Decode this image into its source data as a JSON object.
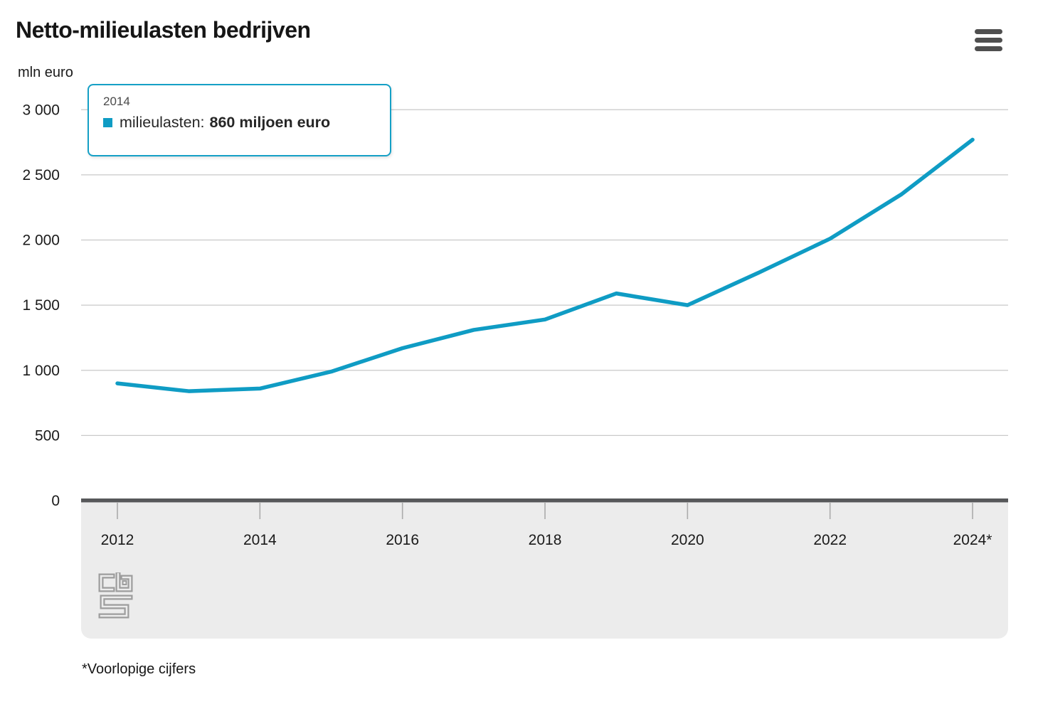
{
  "header": {
    "title": "Netto-milieulasten bedrijven",
    "menu_icon": "hamburger-menu-icon"
  },
  "tooltip": {
    "year": "2014",
    "series_label": "milieulasten:",
    "value_text": "860 miljoen euro"
  },
  "footnote": "*Voorlopige cijfers",
  "logo_name": "cbs-logo",
  "colors": {
    "line": "#0f9cc4",
    "tooltip_border": "#15a0c6",
    "grid": "#c9c9c9",
    "axis_bar": "#57585a",
    "tick": "#ababab",
    "footer_bg": "#ececec",
    "text": "#1a1a1a",
    "logo_gray": "#9d9d9d",
    "menu_gray": "#4f4f4f"
  },
  "chart_data": {
    "type": "line",
    "title": "Netto-milieulasten bedrijven",
    "xlabel": "",
    "ylabel": "mln euro",
    "x": [
      2012,
      2013,
      2014,
      2015,
      2016,
      2017,
      2018,
      2019,
      2020,
      2021,
      2022,
      2023,
      2024
    ],
    "series": [
      {
        "name": "milieulasten",
        "color": "#0f9cc4",
        "values": [
          900,
          840,
          860,
          990,
          1170,
          1310,
          1390,
          1590,
          1500,
          1750,
          2010,
          2350,
          2770
        ]
      }
    ],
    "x_ticks": [
      2012,
      2014,
      2016,
      2018,
      2020,
      2022,
      2024
    ],
    "x_tick_labels": [
      "2012",
      "2014",
      "2016",
      "2018",
      "2020",
      "2022",
      "2024*"
    ],
    "y_ticks": [
      0,
      500,
      1000,
      1500,
      2000,
      2500,
      3000
    ],
    "y_tick_labels": [
      "0",
      "500",
      "1 000",
      "1 500",
      "2 000",
      "2 500",
      "3 000"
    ],
    "xlim": [
      2012,
      2024
    ],
    "ylim": [
      0,
      3000
    ],
    "grid": true,
    "legend_position": "none",
    "hover_point": {
      "x": 2014,
      "value": 860
    },
    "footnote": "*Voorlopige cijfers"
  }
}
